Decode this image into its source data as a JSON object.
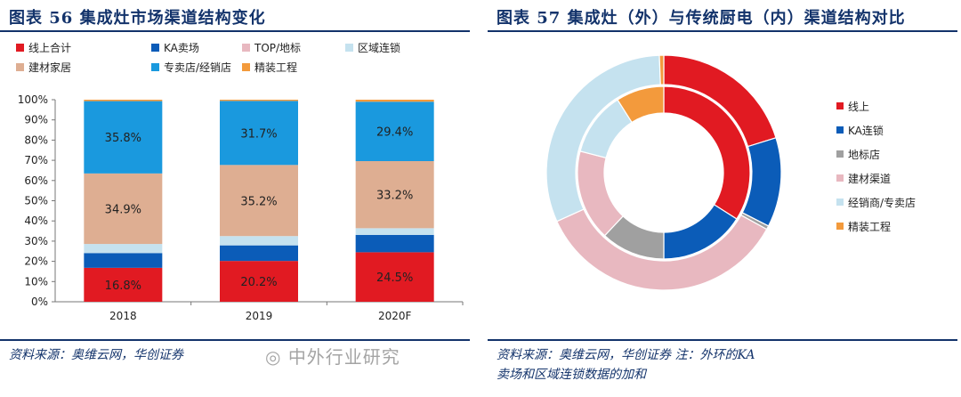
{
  "left": {
    "title": "图表 56   集成灶市场渠道结构变化",
    "source": "资料来源：奥维云网，华创证券",
    "chart_data": {
      "type": "bar",
      "stacked": true,
      "categories": [
        "2018",
        "2019",
        "2020F"
      ],
      "ylim": [
        0,
        100
      ],
      "yticks": [
        "0%",
        "10%",
        "20%",
        "30%",
        "40%",
        "50%",
        "60%",
        "70%",
        "80%",
        "90%",
        "100%"
      ],
      "grid": false,
      "legend_position": "top",
      "series": [
        {
          "name": "线上合计",
          "color": "#e11a22",
          "values": [
            16.8,
            20.2,
            24.5
          ],
          "labels": [
            "16.8%",
            "20.2%",
            "24.5%"
          ]
        },
        {
          "name": "KA卖场",
          "color": "#0b5cb8",
          "values": [
            7.3,
            7.7,
            8.6
          ],
          "labels": [
            "",
            "",
            ""
          ]
        },
        {
          "name": "TOP/地标",
          "color": "#e8b8c0",
          "values": [
            0.0,
            0.0,
            0.0
          ],
          "labels": [
            "",
            "",
            ""
          ]
        },
        {
          "name": "区域连锁",
          "color": "#c5e2ef",
          "values": [
            4.5,
            4.6,
            3.3
          ],
          "labels": [
            "",
            "",
            ""
          ]
        },
        {
          "name": "建材家居",
          "color": "#deae92",
          "values": [
            34.9,
            35.2,
            33.2
          ],
          "labels": [
            "34.9%",
            "35.2%",
            "33.2%"
          ]
        },
        {
          "name": "专卖店/经销店",
          "color": "#1a99de",
          "values": [
            35.8,
            31.7,
            29.4
          ],
          "labels": [
            "35.8%",
            "31.7%",
            "29.4%"
          ]
        },
        {
          "name": "精装工程",
          "color": "#f39a3c",
          "values": [
            0.7,
            0.6,
            1.0
          ],
          "labels": [
            "",
            "",
            ""
          ]
        }
      ]
    }
  },
  "right": {
    "title": "图表 57   集成灶（外）与传统厨电（内）渠道结构对比",
    "source_line1": "资料来源：奥维云网，华创证券  注：外环的KA",
    "source_line2": "卖场和区域连锁数据的加和",
    "chart_data": {
      "type": "pie",
      "variant": "nested-donut",
      "categories": [
        "线上",
        "KA连锁",
        "地标店",
        "建材渠道",
        "经销商/专卖店",
        "精装工程"
      ],
      "colors": [
        "#e11a22",
        "#0b5cb8",
        "#a0a0a0",
        "#e8b8c0",
        "#c5e2ef",
        "#f39a3c"
      ],
      "series": [
        {
          "ring": "outer",
          "values": [
            20.2,
            12.3,
            0.5,
            35.2,
            31.2,
            0.6
          ]
        },
        {
          "ring": "inner",
          "values": [
            34.0,
            16.0,
            12.0,
            17.0,
            12.0,
            9.0
          ]
        }
      ],
      "legend_position": "right"
    }
  },
  "watermark": "中外行业研究"
}
